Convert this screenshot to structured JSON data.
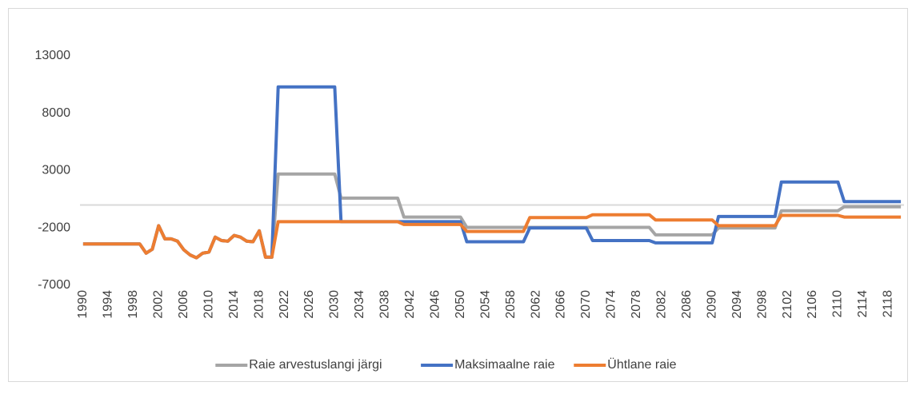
{
  "chart_data": {
    "type": "line",
    "x": [
      1990,
      1991,
      1992,
      1993,
      1994,
      1995,
      1996,
      1997,
      1998,
      1999,
      2000,
      2001,
      2002,
      2003,
      2004,
      2005,
      2006,
      2007,
      2008,
      2009,
      2010,
      2011,
      2012,
      2013,
      2014,
      2015,
      2016,
      2017,
      2018,
      2019,
      2020,
      2021,
      2022,
      2023,
      2024,
      2025,
      2026,
      2027,
      2028,
      2029,
      2030,
      2031,
      2032,
      2033,
      2034,
      2035,
      2036,
      2037,
      2038,
      2039,
      2040,
      2041,
      2042,
      2043,
      2044,
      2045,
      2046,
      2047,
      2048,
      2049,
      2050,
      2051,
      2052,
      2053,
      2054,
      2055,
      2056,
      2057,
      2058,
      2059,
      2060,
      2061,
      2062,
      2063,
      2064,
      2065,
      2066,
      2067,
      2068,
      2069,
      2070,
      2071,
      2072,
      2073,
      2074,
      2075,
      2076,
      2077,
      2078,
      2079,
      2080,
      2081,
      2082,
      2083,
      2084,
      2085,
      2086,
      2087,
      2088,
      2089,
      2090,
      2091,
      2092,
      2093,
      2094,
      2095,
      2096,
      2097,
      2098,
      2099,
      2100,
      2101,
      2102,
      2103,
      2104,
      2105,
      2106,
      2107,
      2108,
      2109,
      2110,
      2111,
      2112,
      2113,
      2114,
      2115,
      2116,
      2117,
      2118,
      2119,
      2120
    ],
    "xlim": [
      1989.5,
      2120.5
    ],
    "xticks": [
      1990,
      1994,
      1998,
      2002,
      2006,
      2010,
      2014,
      2018,
      2022,
      2026,
      2030,
      2034,
      2038,
      2042,
      2046,
      2050,
      2054,
      2058,
      2062,
      2066,
      2070,
      2074,
      2078,
      2082,
      2086,
      2090,
      2094,
      2098,
      2102,
      2106,
      2110,
      2114,
      2118
    ],
    "ylim": [
      -7000,
      13000
    ],
    "yticks": [
      -7000,
      -2000,
      3000,
      8000,
      13000
    ],
    "series": [
      {
        "name": "Raie arvestuslangi järgi",
        "color": "#a5a5a5",
        "values": [
          -3400,
          -3400,
          -3400,
          -3400,
          -3400,
          -3400,
          -3400,
          -3400,
          -3400,
          -3400,
          -4200,
          -3850,
          -1800,
          -2950,
          -2950,
          -3150,
          -3900,
          -4350,
          -4600,
          -4200,
          -4100,
          -2800,
          -3100,
          -3150,
          -2650,
          -2800,
          -3150,
          -3200,
          -2250,
          -4550,
          -4550,
          2700,
          2700,
          2700,
          2700,
          2700,
          2700,
          2700,
          2700,
          2700,
          2700,
          600,
          600,
          600,
          600,
          600,
          600,
          600,
          600,
          600,
          600,
          -1050,
          -1050,
          -1050,
          -1050,
          -1050,
          -1050,
          -1050,
          -1050,
          -1050,
          -1050,
          -1950,
          -1950,
          -1950,
          -1950,
          -1950,
          -1950,
          -1950,
          -1950,
          -1950,
          -1950,
          -1950,
          -1950,
          -1950,
          -1950,
          -1950,
          -1950,
          -1950,
          -1950,
          -1950,
          -1950,
          -1950,
          -1950,
          -1950,
          -1950,
          -1950,
          -1950,
          -1950,
          -1950,
          -1950,
          -1950,
          -2600,
          -2600,
          -2600,
          -2600,
          -2600,
          -2600,
          -2600,
          -2600,
          -2600,
          -2600,
          -2000,
          -2000,
          -2000,
          -2000,
          -2000,
          -2000,
          -2000,
          -2000,
          -2000,
          -2000,
          -500,
          -500,
          -500,
          -500,
          -500,
          -500,
          -500,
          -500,
          -500,
          -500,
          -150,
          -150,
          -150,
          -150,
          -150,
          -150,
          -150,
          -150,
          -150,
          -150
        ]
      },
      {
        "name": "Maksimaalne raie",
        "color": "#4472c4",
        "values": [
          -3400,
          -3400,
          -3400,
          -3400,
          -3400,
          -3400,
          -3400,
          -3400,
          -3400,
          -3400,
          -4200,
          -3850,
          -1800,
          -2950,
          -2950,
          -3150,
          -3900,
          -4350,
          -4600,
          -4200,
          -4100,
          -2800,
          -3100,
          -3150,
          -2650,
          -2800,
          -3150,
          -3200,
          -2250,
          -4550,
          -4550,
          10300,
          10300,
          10300,
          10300,
          10300,
          10300,
          10300,
          10300,
          10300,
          10300,
          -1450,
          -1450,
          -1450,
          -1450,
          -1450,
          -1450,
          -1450,
          -1450,
          -1450,
          -1450,
          -1450,
          -1450,
          -1450,
          -1450,
          -1450,
          -1450,
          -1450,
          -1450,
          -1450,
          -1450,
          -3200,
          -3200,
          -3200,
          -3200,
          -3200,
          -3200,
          -3200,
          -3200,
          -3200,
          -3200,
          -2000,
          -2000,
          -2000,
          -2000,
          -2000,
          -2000,
          -2000,
          -2000,
          -2000,
          -2000,
          -3100,
          -3100,
          -3100,
          -3100,
          -3100,
          -3100,
          -3100,
          -3100,
          -3100,
          -3100,
          -3300,
          -3300,
          -3300,
          -3300,
          -3300,
          -3300,
          -3300,
          -3300,
          -3300,
          -3300,
          -1000,
          -1000,
          -1000,
          -1000,
          -1000,
          -1000,
          -1000,
          -1000,
          -1000,
          -1000,
          2000,
          2000,
          2000,
          2000,
          2000,
          2000,
          2000,
          2000,
          2000,
          2000,
          300,
          300,
          300,
          300,
          300,
          300,
          300,
          300,
          300,
          300
        ]
      },
      {
        "name": "Ühtlane raie",
        "color": "#ed7d31",
        "values": [
          -3400,
          -3400,
          -3400,
          -3400,
          -3400,
          -3400,
          -3400,
          -3400,
          -3400,
          -3400,
          -4200,
          -3850,
          -1800,
          -2950,
          -2950,
          -3150,
          -3900,
          -4350,
          -4600,
          -4200,
          -4100,
          -2800,
          -3100,
          -3150,
          -2650,
          -2800,
          -3150,
          -3200,
          -2250,
          -4550,
          -4550,
          -1450,
          -1450,
          -1450,
          -1450,
          -1450,
          -1450,
          -1450,
          -1450,
          -1450,
          -1450,
          -1450,
          -1450,
          -1450,
          -1450,
          -1450,
          -1450,
          -1450,
          -1450,
          -1450,
          -1450,
          -1700,
          -1700,
          -1700,
          -1700,
          -1700,
          -1700,
          -1700,
          -1700,
          -1700,
          -1700,
          -2300,
          -2300,
          -2300,
          -2300,
          -2300,
          -2300,
          -2300,
          -2300,
          -2300,
          -2300,
          -1100,
          -1100,
          -1100,
          -1100,
          -1100,
          -1100,
          -1100,
          -1100,
          -1100,
          -1100,
          -850,
          -850,
          -850,
          -850,
          -850,
          -850,
          -850,
          -850,
          -850,
          -850,
          -1300,
          -1300,
          -1300,
          -1300,
          -1300,
          -1300,
          -1300,
          -1300,
          -1300,
          -1300,
          -1800,
          -1800,
          -1800,
          -1800,
          -1800,
          -1800,
          -1800,
          -1800,
          -1800,
          -1800,
          -900,
          -900,
          -900,
          -900,
          -900,
          -900,
          -900,
          -900,
          -900,
          -900,
          -1050,
          -1050,
          -1050,
          -1050,
          -1050,
          -1050,
          -1050,
          -1050,
          -1050,
          -1050
        ]
      }
    ],
    "legend": "bottom"
  }
}
